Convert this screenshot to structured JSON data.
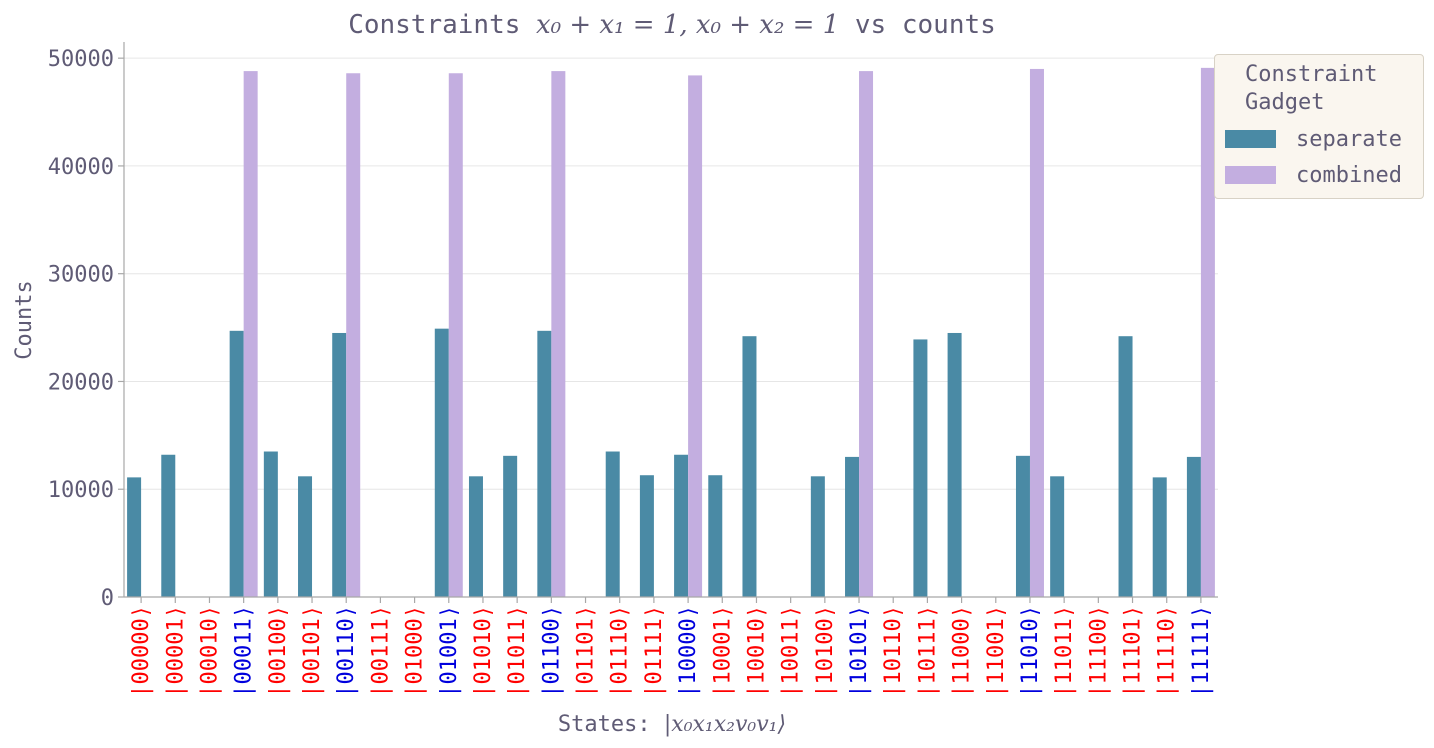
{
  "chart_data": {
    "type": "bar",
    "title": {
      "prefix": "Constraints ",
      "math": "x₀ + x₁ = 1, x₀ + x₂ = 1",
      "suffix": " vs counts"
    },
    "xlabel": {
      "prefix": "States: ",
      "math": "|x₀x₁x₂v₀v₁⟩"
    },
    "ylabel": "Counts",
    "ylim": [
      0,
      51500
    ],
    "yticks": [
      "0",
      "10000",
      "20000",
      "30000",
      "40000",
      "50000"
    ],
    "ytick_values": [
      0,
      10000,
      20000,
      30000,
      40000,
      50000
    ],
    "grid": "horizontal",
    "legend_placement": "outside top-right",
    "categories": [
      "|00000⟩",
      "|00001⟩",
      "|00010⟩",
      "|00011⟩",
      "|00100⟩",
      "|00101⟩",
      "|00110⟩",
      "|00111⟩",
      "|01000⟩",
      "|01001⟩",
      "|01010⟩",
      "|01011⟩",
      "|01100⟩",
      "|01101⟩",
      "|01110⟩",
      "|01111⟩",
      "|10000⟩",
      "|10001⟩",
      "|10010⟩",
      "|10011⟩",
      "|10100⟩",
      "|10101⟩",
      "|10110⟩",
      "|10111⟩",
      "|11000⟩",
      "|11001⟩",
      "|11010⟩",
      "|11011⟩",
      "|11100⟩",
      "|11101⟩",
      "|11110⟩",
      "|11111⟩"
    ],
    "category_colors": [
      "#ff0000",
      "#ff0000",
      "#ff0000",
      "#0000dd",
      "#ff0000",
      "#ff0000",
      "#0000dd",
      "#ff0000",
      "#ff0000",
      "#0000dd",
      "#ff0000",
      "#ff0000",
      "#0000dd",
      "#ff0000",
      "#ff0000",
      "#ff0000",
      "#0000dd",
      "#ff0000",
      "#ff0000",
      "#ff0000",
      "#ff0000",
      "#0000dd",
      "#ff0000",
      "#ff0000",
      "#ff0000",
      "#ff0000",
      "#0000dd",
      "#ff0000",
      "#ff0000",
      "#ff0000",
      "#ff0000",
      "#0000dd"
    ],
    "series": [
      {
        "name": "separate",
        "color": "#4a8aa5",
        "values": [
          11100,
          13200,
          0,
          24700,
          13500,
          11200,
          24500,
          0,
          0,
          24900,
          11200,
          13100,
          24700,
          0,
          13500,
          11300,
          13200,
          11300,
          24200,
          0,
          11200,
          13000,
          0,
          23900,
          24500,
          0,
          13100,
          11200,
          0,
          24200,
          11100,
          13000
        ]
      },
      {
        "name": "combined",
        "color": "#c3aee0",
        "values": [
          0,
          0,
          0,
          48800,
          0,
          0,
          48600,
          0,
          0,
          48600,
          0,
          0,
          48800,
          0,
          0,
          0,
          48400,
          0,
          0,
          0,
          0,
          48800,
          0,
          0,
          0,
          0,
          49000,
          0,
          0,
          0,
          0,
          49100
        ]
      }
    ],
    "legend_title": "Constraint\nGadget"
  }
}
